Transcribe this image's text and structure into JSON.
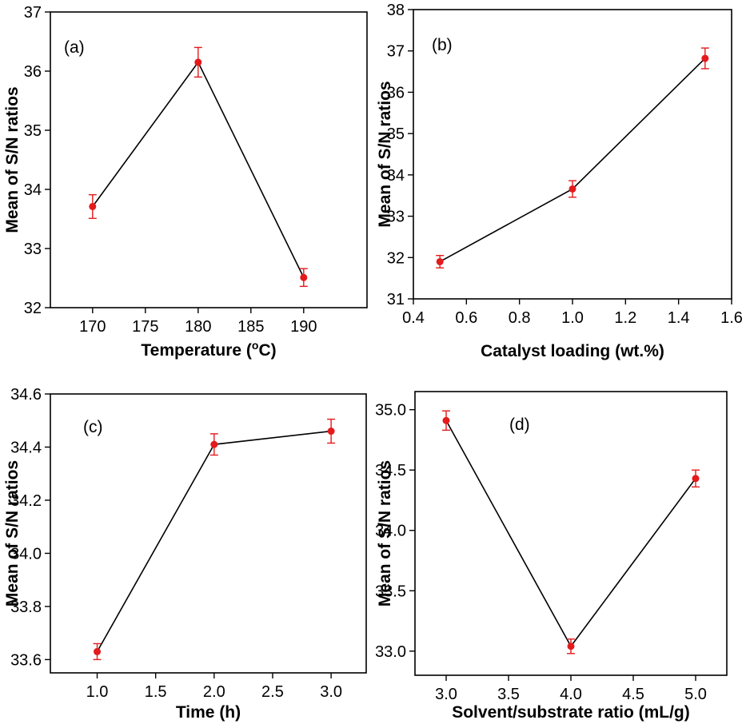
{
  "chart_data": [
    {
      "type": "line",
      "panel_label": "(a)",
      "xlabel": "Temperature (",
      "xlabel_sup": "o",
      "xlabel_end": "C)",
      "ylabel": "Mean of S/N ratios",
      "xlim": [
        166,
        196
      ],
      "ylim": [
        32,
        37
      ],
      "xticks": [
        170,
        175,
        180,
        185,
        190
      ],
      "xtick_labels": [
        "170",
        "175",
        "180",
        "185",
        "190"
      ],
      "yticks": [
        32,
        33,
        34,
        35,
        36,
        37
      ],
      "ytick_labels": [
        "32",
        "33",
        "34",
        "35",
        "36",
        "37"
      ],
      "x": [
        170,
        180,
        190
      ],
      "y": [
        33.71,
        36.15,
        32.51
      ],
      "err": [
        0.2,
        0.25,
        0.15
      ],
      "colors": {
        "line": "#000000",
        "marker": "#e41a1c",
        "errorbar": "#e41a1c"
      }
    },
    {
      "type": "line",
      "panel_label": "(b)",
      "xlabel": "Catalyst loading (wt.%)",
      "ylabel": "Mean of S/N ratios",
      "xlim": [
        0.4,
        1.6
      ],
      "ylim": [
        31,
        38
      ],
      "xticks": [
        0.4,
        0.6,
        0.8,
        1.0,
        1.2,
        1.4,
        1.6
      ],
      "xtick_labels": [
        "0.4",
        "0.6",
        "0.8",
        "1.0",
        "1.2",
        "1.4",
        "1.6"
      ],
      "yticks": [
        31,
        32,
        33,
        34,
        35,
        36,
        37,
        38
      ],
      "ytick_labels": [
        "31",
        "32",
        "33",
        "34",
        "35",
        "36",
        "37",
        "38"
      ],
      "x": [
        0.5,
        1.0,
        1.5
      ],
      "y": [
        31.9,
        33.66,
        36.82
      ],
      "err": [
        0.15,
        0.2,
        0.25
      ],
      "colors": {
        "line": "#000000",
        "marker": "#e41a1c",
        "errorbar": "#e41a1c"
      }
    },
    {
      "type": "line",
      "panel_label": "(c)",
      "xlabel": "Time (h)",
      "ylabel": "Mean of S/N ratios",
      "xlim": [
        0.6,
        3.3
      ],
      "ylim": [
        33.55,
        34.6
      ],
      "xticks": [
        1.0,
        1.5,
        2.0,
        2.5,
        3.0
      ],
      "xtick_labels": [
        "1.0",
        "1.5",
        "2.0",
        "2.5",
        "3.0"
      ],
      "yticks": [
        33.6,
        33.8,
        34.0,
        34.2,
        34.4,
        34.6
      ],
      "ytick_labels": [
        "33.6",
        "33.8",
        "34.0",
        "34.2",
        "34.4",
        "34.6"
      ],
      "x": [
        1.0,
        2.0,
        3.0
      ],
      "y": [
        33.63,
        34.41,
        34.46
      ],
      "err": [
        0.03,
        0.04,
        0.045
      ],
      "colors": {
        "line": "#000000",
        "marker": "#e41a1c",
        "errorbar": "#e41a1c"
      }
    },
    {
      "type": "line",
      "panel_label": "(d)",
      "xlabel": "Solvent/substrate ratio (mL/g)",
      "ylabel": "Mean of S/N ratios",
      "xlim": [
        2.75,
        5.25
      ],
      "ylim": [
        32.8,
        35.15
      ],
      "xticks": [
        3.0,
        3.5,
        4.0,
        4.5,
        5.0
      ],
      "xtick_labels": [
        "3.0",
        "3.5",
        "4.0",
        "4.5",
        "5.0"
      ],
      "yticks": [
        33.0,
        33.5,
        34.0,
        34.5,
        35.0
      ],
      "ytick_labels": [
        "33.0",
        "33.5",
        "34.0",
        "34.5",
        "35.0"
      ],
      "x": [
        3.0,
        4.0,
        5.0
      ],
      "y": [
        34.91,
        33.04,
        34.43
      ],
      "err": [
        0.08,
        0.06,
        0.07
      ],
      "colors": {
        "line": "#000000",
        "marker": "#e41a1c",
        "errorbar": "#e41a1c"
      }
    }
  ]
}
